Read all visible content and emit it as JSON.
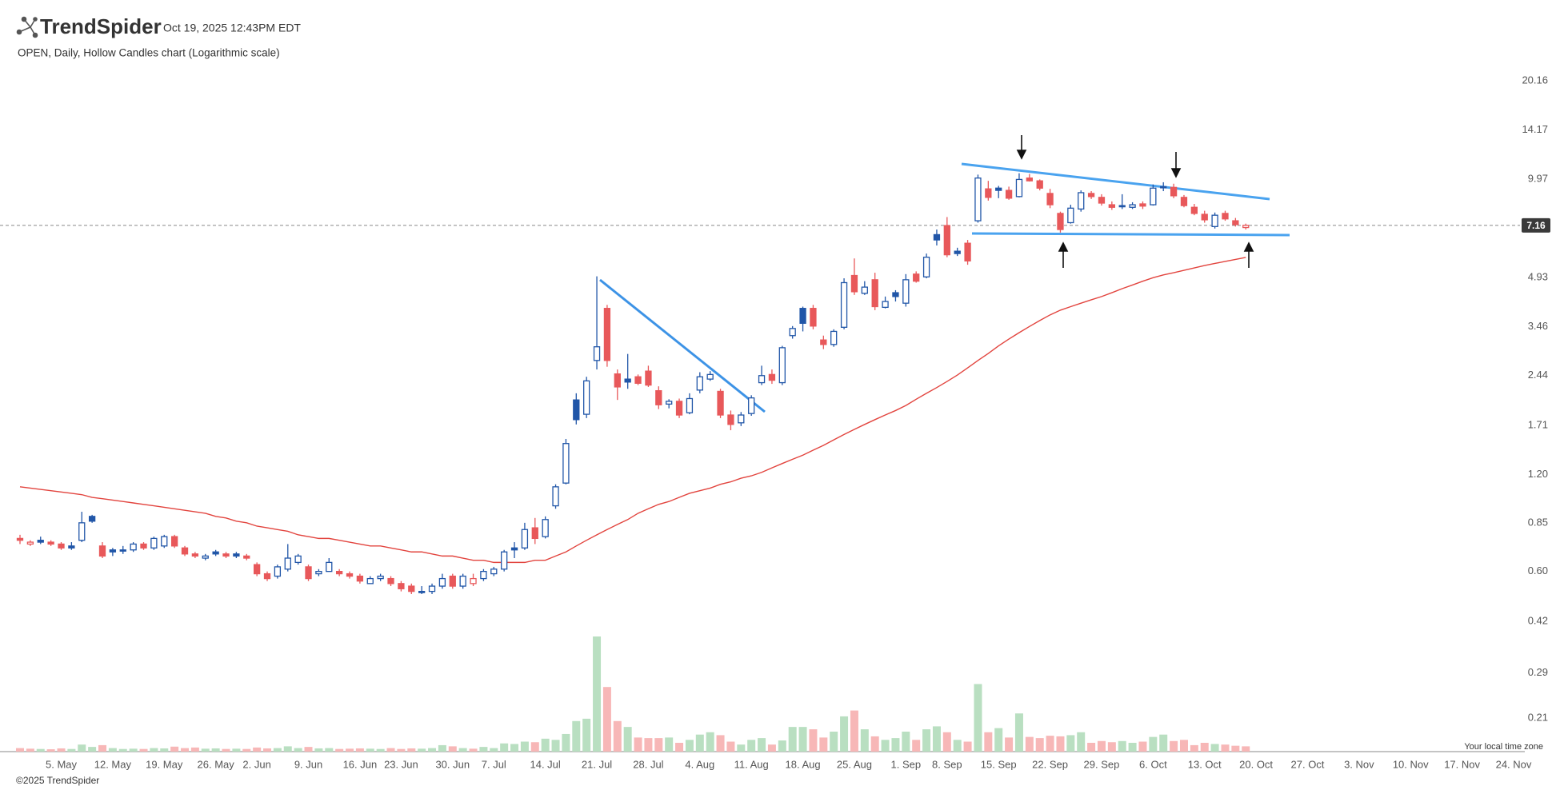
{
  "header": {
    "logo": "TrendSpider",
    "timestamp": "Oct 19, 2025 12:43PM EDT"
  },
  "footer": {
    "copyright": "©2025 TrendSpider",
    "timezone_note": "Your local time zone"
  },
  "chart_data": {
    "type": "candlestick",
    "subtitle": "OPEN, Daily, Hollow Candles chart (Logarithmic scale)",
    "log_scale": true,
    "grid": false,
    "up_color": "#2156a8",
    "down_color": "#e8585a",
    "volume_up_color": "#b9dfc1",
    "volume_down_color": "#f7b7b7",
    "ma_color": "#e2443e",
    "ylim": [
      0.165,
      21.8
    ],
    "yticks": [
      0.21,
      0.29,
      0.42,
      {
        "value": 0.6,
        "label": "0.60"
      },
      0.85,
      {
        "value": 1.2,
        "label": "1.20"
      },
      1.71,
      2.44,
      3.46,
      4.93,
      9.97,
      14.17,
      20.16
    ],
    "last_price": 7.16,
    "categories": [
      null,
      null,
      null,
      null,
      "5. May",
      null,
      null,
      null,
      null,
      "12. May",
      null,
      null,
      null,
      null,
      "19. May",
      null,
      null,
      null,
      null,
      "26. May",
      null,
      null,
      null,
      "2. Jun",
      null,
      null,
      null,
      null,
      "9. Jun",
      null,
      null,
      null,
      null,
      "16. Jun",
      null,
      null,
      null,
      "23. Jun",
      null,
      null,
      null,
      null,
      "30. Jun",
      null,
      null,
      null,
      "7. Jul",
      null,
      null,
      null,
      null,
      "14. Jul",
      null,
      null,
      null,
      null,
      "21. Jul",
      null,
      null,
      null,
      null,
      "28. Jul",
      null,
      null,
      null,
      null,
      "4. Aug",
      null,
      null,
      null,
      null,
      "11. Aug",
      null,
      null,
      null,
      null,
      "18. Aug",
      null,
      null,
      null,
      null,
      "25. Aug",
      null,
      null,
      null,
      null,
      "1. Sep",
      null,
      null,
      null,
      "8. Sep",
      null,
      null,
      null,
      null,
      "15. Sep",
      null,
      null,
      null,
      null,
      "22. Sep",
      null,
      null,
      null,
      null,
      "29. Sep",
      null,
      null,
      null,
      null,
      "6. Oct",
      null,
      null,
      null,
      null,
      "13. Oct",
      null,
      null,
      null,
      null,
      "20. Oct",
      null,
      null,
      null,
      null,
      "27. Oct",
      null,
      null,
      null,
      null,
      "3. Nov",
      null,
      null,
      null,
      null,
      "10. Nov",
      null,
      null,
      null,
      null,
      "17. Nov",
      null,
      null,
      null,
      null,
      "24. Nov"
    ],
    "open": [
      0.76,
      0.73,
      0.75,
      0.74,
      0.73,
      0.72,
      0.75,
      0.89,
      0.72,
      0.7,
      0.7,
      0.7,
      0.73,
      0.71,
      0.72,
      0.77,
      0.71,
      0.68,
      0.66,
      0.69,
      0.68,
      0.68,
      0.67,
      0.63,
      0.59,
      0.58,
      0.61,
      0.64,
      0.62,
      0.59,
      0.6,
      0.6,
      0.59,
      0.58,
      0.55,
      0.57,
      0.57,
      0.55,
      0.54,
      0.52,
      0.52,
      0.54,
      0.58,
      0.54,
      0.55,
      0.57,
      0.59,
      0.61,
      0.71,
      0.71,
      0.82,
      0.77,
      0.96,
      1.13,
      2.05,
      1.85,
      2.72,
      3.95,
      2.47,
      2.38,
      2.42,
      2.52,
      2.19,
      1.99,
      2.03,
      1.87,
      2.2,
      2.38,
      2.18,
      1.84,
      1.74,
      1.86,
      2.32,
      2.46,
      2.32,
      3.25,
      3.95,
      3.95,
      3.15,
      3.05,
      3.45,
      5.0,
      4.4,
      4.85,
      3.98,
      4.42,
      4.1,
      5.05,
      4.95,
      6.7,
      7.15,
      5.95,
      6.3,
      7.4,
      9.3,
      9.35,
      9.2,
      8.8,
      10.05,
      9.85,
      9.0,
      7.8,
      7.3,
      8.05,
      9.0,
      8.75,
      8.3,
      8.25,
      8.15,
      8.35,
      8.3,
      9.45,
      9.4,
      8.75,
      8.15,
      7.75,
      7.1,
      7.8,
      7.4,
      7.05,
      null,
      null,
      null,
      null,
      null,
      null,
      null,
      null,
      null,
      null,
      null,
      null,
      null,
      null,
      null,
      null,
      null,
      null,
      null,
      null,
      null,
      null,
      null,
      null,
      null,
      null
    ],
    "high": [
      0.78,
      0.75,
      0.77,
      0.75,
      0.74,
      0.74,
      0.92,
      0.9,
      0.74,
      0.71,
      0.72,
      0.74,
      0.74,
      0.77,
      0.78,
      0.78,
      0.72,
      0.69,
      0.68,
      0.7,
      0.69,
      0.69,
      0.68,
      0.64,
      0.6,
      0.63,
      0.73,
      0.68,
      0.63,
      0.61,
      0.66,
      0.61,
      0.6,
      0.59,
      0.58,
      0.59,
      0.58,
      0.56,
      0.55,
      0.54,
      0.55,
      0.59,
      0.59,
      0.59,
      0.59,
      0.61,
      0.62,
      0.7,
      0.74,
      0.85,
      0.88,
      0.89,
      1.12,
      1.55,
      2.15,
      2.42,
      4.97,
      4.05,
      2.55,
      2.85,
      2.46,
      2.62,
      2.26,
      2.06,
      2.07,
      2.15,
      2.5,
      2.52,
      2.22,
      1.9,
      1.88,
      2.12,
      2.62,
      2.55,
      3.02,
      3.48,
      4.0,
      4.05,
      3.25,
      3.4,
      4.9,
      5.65,
      4.8,
      5.1,
      4.3,
      4.5,
      5.05,
      5.15,
      5.85,
      6.95,
      7.6,
      6.1,
      6.45,
      10.3,
      9.85,
      9.5,
      9.45,
      10.4,
      10.35,
      9.95,
      9.3,
      7.9,
      8.3,
      9.2,
      9.15,
      8.95,
      8.5,
      8.95,
      8.45,
      8.5,
      9.6,
      9.75,
      9.65,
      8.9,
      8.35,
      7.95,
      7.85,
      7.95,
      7.55,
      7.25,
      null,
      null,
      null,
      null,
      null,
      null,
      null,
      null,
      null,
      null,
      null,
      null,
      null,
      null,
      null,
      null,
      null,
      null,
      null,
      null,
      null,
      null,
      null,
      null,
      null,
      null
    ],
    "low": [
      0.73,
      0.72,
      0.73,
      0.72,
      0.7,
      0.7,
      0.74,
      0.85,
      0.66,
      0.67,
      0.68,
      0.69,
      0.7,
      0.7,
      0.71,
      0.71,
      0.67,
      0.66,
      0.65,
      0.67,
      0.66,
      0.66,
      0.65,
      0.58,
      0.56,
      0.57,
      0.6,
      0.63,
      0.56,
      0.58,
      0.6,
      0.58,
      0.57,
      0.55,
      0.55,
      0.56,
      0.54,
      0.52,
      0.51,
      0.51,
      0.51,
      0.53,
      0.53,
      0.53,
      0.54,
      0.56,
      0.58,
      0.6,
      0.66,
      0.7,
      0.73,
      0.76,
      0.94,
      1.12,
      1.72,
      1.8,
      2.55,
      2.6,
      2.05,
      2.22,
      2.28,
      2.25,
      1.92,
      1.93,
      1.8,
      1.85,
      2.15,
      2.35,
      1.8,
      1.65,
      1.7,
      1.83,
      2.28,
      2.3,
      2.28,
      3.18,
      3.35,
      3.4,
      2.95,
      3.0,
      3.4,
      4.35,
      4.35,
      3.9,
      3.95,
      4.15,
      4.0,
      4.75,
      4.9,
      6.2,
      5.7,
      5.75,
      5.4,
      7.3,
      8.55,
      8.7,
      8.6,
      8.75,
      9.8,
      9.2,
      8.1,
      6.8,
      7.25,
      7.9,
      8.65,
      8.25,
      8.0,
      8.05,
      8.05,
      8.05,
      8.25,
      9.15,
      8.7,
      8.15,
      7.7,
      7.3,
      7.0,
      7.4,
      7.1,
      6.95,
      null,
      null,
      null,
      null,
      null,
      null,
      null,
      null,
      null,
      null,
      null,
      null,
      null,
      null,
      null,
      null,
      null,
      null,
      null,
      null,
      null,
      null,
      null,
      null,
      null,
      null
    ],
    "close": [
      0.75,
      0.74,
      0.74,
      0.73,
      0.71,
      0.71,
      0.85,
      0.86,
      0.67,
      0.69,
      0.7,
      0.73,
      0.71,
      0.76,
      0.77,
      0.72,
      0.68,
      0.67,
      0.67,
      0.68,
      0.67,
      0.67,
      0.66,
      0.59,
      0.57,
      0.62,
      0.66,
      0.67,
      0.57,
      0.6,
      0.64,
      0.59,
      0.58,
      0.56,
      0.57,
      0.58,
      0.55,
      0.53,
      0.52,
      0.52,
      0.54,
      0.57,
      0.54,
      0.58,
      0.57,
      0.6,
      0.61,
      0.69,
      0.7,
      0.81,
      0.76,
      0.87,
      1.1,
      1.5,
      1.78,
      2.35,
      3.0,
      2.72,
      2.25,
      2.33,
      2.31,
      2.28,
      1.98,
      2.03,
      1.84,
      2.07,
      2.42,
      2.46,
      1.84,
      1.72,
      1.84,
      2.08,
      2.44,
      2.36,
      2.98,
      3.42,
      3.55,
      3.48,
      3.05,
      3.35,
      4.75,
      4.45,
      4.6,
      4.0,
      4.15,
      4.3,
      4.85,
      4.8,
      5.7,
      6.45,
      5.8,
      5.85,
      5.55,
      10.05,
      8.75,
      9.2,
      8.7,
      9.95,
      9.85,
      9.35,
      8.3,
      6.95,
      8.1,
      9.05,
      8.8,
      8.4,
      8.15,
      8.18,
      8.3,
      8.22,
      9.35,
      9.38,
      8.85,
      8.25,
      7.8,
      7.45,
      7.7,
      7.5,
      7.2,
      7.16,
      null,
      null,
      null,
      null,
      null,
      null,
      null,
      null,
      null,
      null,
      null,
      null,
      null,
      null,
      null,
      null,
      null,
      null,
      null,
      null,
      null,
      null,
      null,
      null,
      null,
      null
    ],
    "volume": [
      60,
      50,
      45,
      40,
      55,
      45,
      120,
      80,
      110,
      60,
      45,
      50,
      45,
      60,
      55,
      85,
      60,
      70,
      50,
      55,
      45,
      50,
      45,
      70,
      55,
      60,
      90,
      60,
      80,
      55,
      60,
      45,
      50,
      55,
      50,
      45,
      60,
      45,
      55,
      50,
      60,
      110,
      90,
      60,
      50,
      80,
      60,
      140,
      130,
      170,
      160,
      220,
      200,
      300,
      520,
      560,
      1960,
      1100,
      520,
      420,
      240,
      230,
      230,
      240,
      150,
      200,
      290,
      330,
      280,
      170,
      120,
      200,
      230,
      120,
      190,
      420,
      420,
      380,
      240,
      340,
      600,
      700,
      380,
      260,
      200,
      230,
      340,
      200,
      380,
      430,
      330,
      200,
      170,
      1150,
      330,
      400,
      240,
      650,
      250,
      230,
      270,
      260,
      280,
      330,
      150,
      180,
      160,
      180,
      150,
      170,
      250,
      290,
      180,
      200,
      110,
      150,
      130,
      120,
      100,
      90,
      null,
      null,
      null,
      null,
      null,
      null,
      null,
      null,
      null,
      null,
      null,
      null,
      null,
      null,
      null,
      null,
      null,
      null,
      null,
      null,
      null,
      null,
      null,
      null,
      null,
      null
    ],
    "ma": [
      1.1,
      1.09,
      1.08,
      1.07,
      1.06,
      1.05,
      1.04,
      1.02,
      1.01,
      1.0,
      0.99,
      0.98,
      0.97,
      0.96,
      0.95,
      0.94,
      0.93,
      0.92,
      0.91,
      0.89,
      0.88,
      0.86,
      0.85,
      0.83,
      0.82,
      0.81,
      0.8,
      0.78,
      0.77,
      0.76,
      0.76,
      0.75,
      0.74,
      0.73,
      0.72,
      0.72,
      0.71,
      0.7,
      0.69,
      0.69,
      0.68,
      0.67,
      0.67,
      0.66,
      0.65,
      0.65,
      0.64,
      0.64,
      0.64,
      0.64,
      0.65,
      0.65,
      0.67,
      0.69,
      0.72,
      0.75,
      0.78,
      0.81,
      0.84,
      0.87,
      0.91,
      0.94,
      0.97,
      0.99,
      1.02,
      1.05,
      1.07,
      1.09,
      1.12,
      1.14,
      1.17,
      1.19,
      1.22,
      1.26,
      1.3,
      1.34,
      1.38,
      1.43,
      1.48,
      1.54,
      1.6,
      1.66,
      1.72,
      1.78,
      1.84,
      1.9,
      1.97,
      2.06,
      2.15,
      2.24,
      2.34,
      2.45,
      2.58,
      2.72,
      2.86,
      3.02,
      3.17,
      3.32,
      3.47,
      3.62,
      3.77,
      3.9,
      4.0,
      4.1,
      4.2,
      4.3,
      4.42,
      4.55,
      4.67,
      4.8,
      4.92,
      5.02,
      5.1,
      5.19,
      5.28,
      5.37,
      5.45,
      5.53,
      5.61,
      5.69,
      null,
      null,
      null,
      null,
      null,
      null,
      null,
      null,
      null,
      null,
      null,
      null,
      null,
      null,
      null,
      null,
      null,
      null,
      null,
      null,
      null,
      null,
      null,
      null,
      null,
      null
    ]
  }
}
